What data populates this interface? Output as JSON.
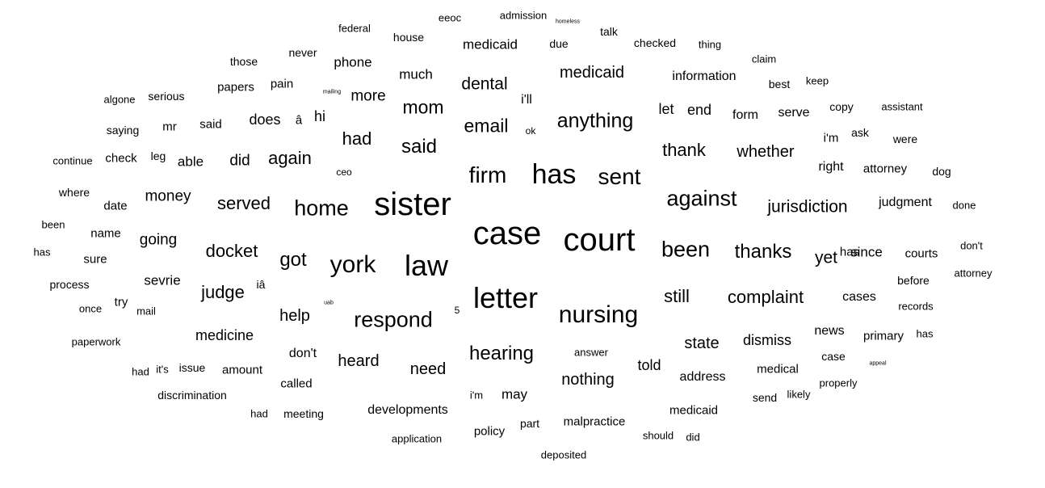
{
  "words": [
    {
      "text": "sister",
      "size": 40
    },
    {
      "text": "case",
      "size": 40
    },
    {
      "text": "court",
      "size": 40
    },
    {
      "text": "law",
      "size": 36
    },
    {
      "text": "letter",
      "size": 36
    },
    {
      "text": "has",
      "size": 34
    },
    {
      "text": "york",
      "size": 30
    },
    {
      "text": "nursing",
      "size": 30
    },
    {
      "text": "firm",
      "size": 28
    },
    {
      "text": "sent",
      "size": 28
    },
    {
      "text": "home",
      "size": 27
    },
    {
      "text": "respond",
      "size": 27
    },
    {
      "text": "been",
      "size": 27
    },
    {
      "text": "against",
      "size": 27
    },
    {
      "text": "anything",
      "size": 25
    },
    {
      "text": "hearing",
      "size": 24
    },
    {
      "text": "said",
      "size": 24
    },
    {
      "text": "got",
      "size": 24
    },
    {
      "text": "thanks",
      "size": 24
    },
    {
      "text": "email",
      "size": 23
    },
    {
      "text": "mom",
      "size": 23
    },
    {
      "text": "docket",
      "size": 22
    },
    {
      "text": "again",
      "size": 22
    },
    {
      "text": "had",
      "size": 22
    },
    {
      "text": "served",
      "size": 22
    },
    {
      "text": "judge",
      "size": 22
    },
    {
      "text": "complaint",
      "size": 22
    },
    {
      "text": "still",
      "size": 22
    },
    {
      "text": "thank",
      "size": 22
    },
    {
      "text": "jurisdiction",
      "size": 21
    },
    {
      "text": "dental",
      "size": 21
    },
    {
      "text": "yet",
      "size": 21
    },
    {
      "text": "whether",
      "size": 20
    },
    {
      "text": "medicaid",
      "size": 20
    },
    {
      "text": "heard",
      "size": 20
    },
    {
      "text": "need",
      "size": 20
    },
    {
      "text": "nothing",
      "size": 20
    },
    {
      "text": "state",
      "size": 20
    },
    {
      "text": "help",
      "size": 20
    },
    {
      "text": "money",
      "size": 19
    },
    {
      "text": "going",
      "size": 19
    },
    {
      "text": "did",
      "size": 19
    },
    {
      "text": "more",
      "size": 19
    },
    {
      "text": "medicine",
      "size": 18
    },
    {
      "text": "told",
      "size": 18
    },
    {
      "text": "let",
      "size": 18
    },
    {
      "text": "end",
      "size": 18
    },
    {
      "text": "dismiss",
      "size": 18
    },
    {
      "text": "hi",
      "size": 18
    },
    {
      "text": "does",
      "size": 18
    },
    {
      "text": "medicaid",
      "size": 17
    },
    {
      "text": "phone",
      "size": 17
    },
    {
      "text": "since",
      "size": 17
    },
    {
      "text": "sevrie",
      "size": 17
    },
    {
      "text": "much",
      "size": 17
    },
    {
      "text": "may",
      "size": 17
    },
    {
      "text": "able",
      "size": 17
    },
    {
      "text": "information",
      "size": 16
    },
    {
      "text": "developments",
      "size": 16
    },
    {
      "text": "form",
      "size": 16
    },
    {
      "text": "serve",
      "size": 16
    },
    {
      "text": "right",
      "size": 16
    },
    {
      "text": "judgment",
      "size": 16
    },
    {
      "text": "don't",
      "size": 16
    },
    {
      "text": "cases",
      "size": 16
    },
    {
      "text": "address",
      "size": 16
    },
    {
      "text": "i'll",
      "size": 16
    },
    {
      "text": "news",
      "size": 16
    },
    {
      "text": "primary",
      "size": 15
    },
    {
      "text": "courts",
      "size": 15
    },
    {
      "text": "i'm",
      "size": 15
    },
    {
      "text": "amount",
      "size": 15
    },
    {
      "text": "check",
      "size": 15
    },
    {
      "text": "papers",
      "size": 15
    },
    {
      "text": "said",
      "size": 15
    },
    {
      "text": "policy",
      "size": 15
    },
    {
      "text": "malpractice",
      "size": 15
    },
    {
      "text": "medical",
      "size": 15
    },
    {
      "text": "pain",
      "size": 15
    },
    {
      "text": "medicaid",
      "size": 15
    },
    {
      "text": "called",
      "size": 15
    },
    {
      "text": "attorney",
      "size": 15
    },
    {
      "text": "has",
      "size": 15
    },
    {
      "text": "â",
      "size": 15
    },
    {
      "text": "iâ",
      "size": 14
    },
    {
      "text": "name",
      "size": 15
    },
    {
      "text": "date",
      "size": 15
    },
    {
      "text": "sure",
      "size": 15
    },
    {
      "text": "meeting",
      "size": 14
    },
    {
      "text": "discrimination",
      "size": 14
    },
    {
      "text": "mr",
      "size": 15
    },
    {
      "text": "try",
      "size": 15
    },
    {
      "text": "leg",
      "size": 14
    },
    {
      "text": "issue",
      "size": 14
    },
    {
      "text": "before",
      "size": 14
    },
    {
      "text": "house",
      "size": 14
    },
    {
      "text": "due",
      "size": 14
    },
    {
      "text": "checked",
      "size": 14
    },
    {
      "text": "talk",
      "size": 14
    },
    {
      "text": "those",
      "size": 14
    },
    {
      "text": "never",
      "size": 14
    },
    {
      "text": "serious",
      "size": 14
    },
    {
      "text": "saying",
      "size": 14
    },
    {
      "text": "where",
      "size": 14
    },
    {
      "text": "process",
      "size": 14
    },
    {
      "text": "part",
      "size": 14
    },
    {
      "text": "case",
      "size": 14
    },
    {
      "text": "send",
      "size": 14
    },
    {
      "text": "ask",
      "size": 14
    },
    {
      "text": "were",
      "size": 14
    },
    {
      "text": "copy",
      "size": 14
    },
    {
      "text": "best",
      "size": 14
    },
    {
      "text": "dog",
      "size": 14
    },
    {
      "text": "federal",
      "size": 13
    },
    {
      "text": "eeoc",
      "size": 13
    },
    {
      "text": "admission",
      "size": 13
    },
    {
      "text": "paperwork",
      "size": 13
    },
    {
      "text": "application",
      "size": 13
    },
    {
      "text": "deposited",
      "size": 13
    },
    {
      "text": "should",
      "size": 13
    },
    {
      "text": "did",
      "size": 13
    },
    {
      "text": "records",
      "size": 13
    },
    {
      "text": "done",
      "size": 13
    },
    {
      "text": "keep",
      "size": 13
    },
    {
      "text": "claim",
      "size": 13
    },
    {
      "text": "assistant",
      "size": 13
    },
    {
      "text": "thing",
      "size": 13
    },
    {
      "text": "algone",
      "size": 13
    },
    {
      "text": "continue",
      "size": 13
    },
    {
      "text": "been",
      "size": 13
    },
    {
      "text": "has",
      "size": 13
    },
    {
      "text": "once",
      "size": 13
    },
    {
      "text": "mail",
      "size": 13
    },
    {
      "text": "had",
      "size": 13
    },
    {
      "text": "it's",
      "size": 13
    },
    {
      "text": "had",
      "size": 13
    },
    {
      "text": "i'm",
      "size": 13
    },
    {
      "text": "answer",
      "size": 13
    },
    {
      "text": "likely",
      "size": 13
    },
    {
      "text": "properly",
      "size": 13
    },
    {
      "text": "has",
      "size": 13
    },
    {
      "text": "don't",
      "size": 13
    },
    {
      "text": "attorney",
      "size": 13
    },
    {
      "text": "ceo",
      "size": 12
    },
    {
      "text": "ok",
      "size": 12
    },
    {
      "text": "5",
      "size": 12
    },
    {
      "text": "homeless",
      "size": 7
    },
    {
      "text": "mailing",
      "size": 7
    },
    {
      "text": "uab",
      "size": 7
    },
    {
      "text": "appeal",
      "size": 7
    }
  ]
}
